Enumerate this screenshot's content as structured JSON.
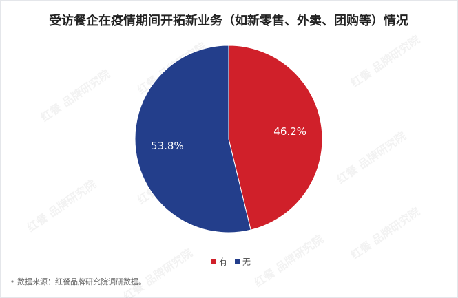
{
  "chart_data": {
    "type": "pie",
    "title": "受访餐企在疫情期间开拓新业务（如新零售、外卖、团购等）情况",
    "categories": [
      "有",
      "无"
    ],
    "values": [
      46.2,
      53.8
    ],
    "value_labels": [
      "46.2%",
      "53.8%"
    ],
    "colors": [
      "#d0202a",
      "#233e8b"
    ],
    "legend": "bottom"
  },
  "source": "数据来源：红餐品牌研究院调研数据。",
  "watermark": "红餐 品牌研究院"
}
